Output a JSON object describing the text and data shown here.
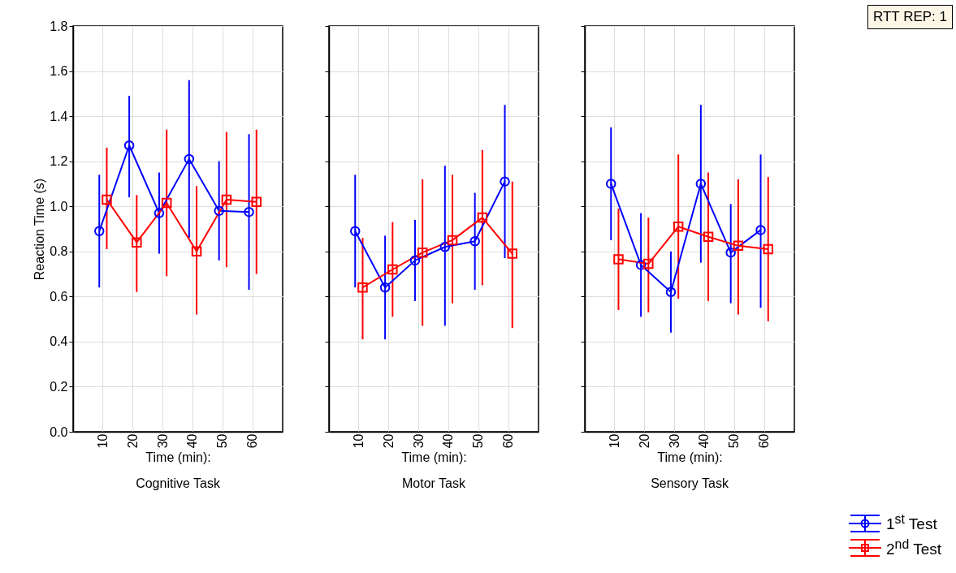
{
  "chart_data": [
    {
      "type": "line",
      "title": "Cognitive Task",
      "xlabel": "Time (min):",
      "ylabel": "Reaction Time (s)",
      "categories": [
        "10",
        "20",
        "30",
        "40",
        "50",
        "60"
      ],
      "ylim": [
        0,
        1.8
      ],
      "yticks": [
        {
          "value": 0,
          "label": "0.0"
        },
        0.2,
        0.4,
        0.6,
        0.8,
        {
          "value": 1,
          "label": "1.0"
        },
        1.2,
        1.4,
        1.6,
        1.8
      ],
      "grid": true,
      "legend": "bottom right",
      "series": [
        {
          "name": "1$^{st}$ Test",
          "color": "#0000ff",
          "marker": "circle",
          "values": [
            0.89,
            1.27,
            0.97,
            1.21,
            0.98,
            0.975
          ],
          "errors": [
            [
              0.64,
              1.14
            ],
            [
              1.04,
              1.49
            ],
            [
              0.79,
              1.15
            ],
            [
              0.86,
              1.56
            ],
            [
              0.76,
              1.2
            ],
            [
              0.63,
              1.32
            ]
          ]
        },
        {
          "name": "2$^{nd}$ Test",
          "color": "#ff0000",
          "marker": "square",
          "values": [
            1.03,
            0.84,
            1.015,
            0.8,
            1.03,
            1.02
          ],
          "errors": [
            [
              0.81,
              1.26
            ],
            [
              0.62,
              1.05
            ],
            [
              0.69,
              1.34
            ],
            [
              0.52,
              1.09
            ],
            [
              0.73,
              1.33
            ],
            [
              0.7,
              1.34
            ]
          ]
        }
      ]
    },
    {
      "type": "line",
      "title": "Motor Task",
      "xlabel": "Time (min):",
      "categories": [
        "10",
        "20",
        "30",
        "40",
        "50",
        "60"
      ],
      "ylim": [
        0,
        1.8
      ],
      "yticks": [
        0,
        0.2,
        0.4,
        0.6,
        0.8,
        1,
        1.2,
        1.4,
        1.6,
        1.8
      ],
      "grid": true,
      "tick_labels": "x",
      "series": [
        {
          "color": "#0000ff",
          "marker": "circle",
          "values": [
            0.89,
            0.64,
            0.76,
            0.82,
            0.845,
            1.11
          ],
          "errors": [
            [
              0.64,
              1.14
            ],
            [
              0.41,
              0.87
            ],
            [
              0.58,
              0.94
            ],
            [
              0.47,
              1.18
            ],
            [
              0.63,
              1.06
            ],
            [
              0.77,
              1.45
            ]
          ]
        },
        {
          "color": "#ff0000",
          "marker": "square",
          "values": [
            0.64,
            0.72,
            0.795,
            0.85,
            0.95,
            0.79
          ],
          "errors": [
            [
              0.41,
              0.86
            ],
            [
              0.51,
              0.93
            ],
            [
              0.47,
              1.12
            ],
            [
              0.57,
              1.14
            ],
            [
              0.65,
              1.25
            ],
            [
              0.46,
              1.11
            ]
          ]
        }
      ]
    },
    {
      "type": "line",
      "title": "Sensory Task",
      "xlabel": "Time (min):",
      "categories": [
        "10",
        "20",
        "30",
        "40",
        "50",
        "60"
      ],
      "ylim": [
        0,
        1.8
      ],
      "yticks": [
        0,
        0.2,
        0.4,
        0.6,
        0.8,
        1,
        1.2,
        1.4,
        1.6,
        1.8
      ],
      "grid": true,
      "tick_labels": "x",
      "annotations": [
        "RTT REP: 1"
      ],
      "series": [
        {
          "color": "#0000ff",
          "marker": "circle",
          "values": [
            1.1,
            0.74,
            0.62,
            1.1,
            0.795,
            0.895
          ],
          "errors": [
            [
              0.85,
              1.35
            ],
            [
              0.51,
              0.97
            ],
            [
              0.44,
              0.8
            ],
            [
              0.75,
              1.45
            ],
            [
              0.57,
              1.01
            ],
            [
              0.55,
              1.23
            ]
          ]
        },
        {
          "color": "#ff0000",
          "marker": "square",
          "values": [
            0.765,
            0.745,
            0.91,
            0.865,
            0.825,
            0.81
          ],
          "errors": [
            [
              0.54,
              0.99
            ],
            [
              0.53,
              0.95
            ],
            [
              0.59,
              1.23
            ],
            [
              0.58,
              1.15
            ],
            [
              0.52,
              1.12
            ],
            [
              0.49,
              1.13
            ]
          ]
        }
      ]
    }
  ]
}
